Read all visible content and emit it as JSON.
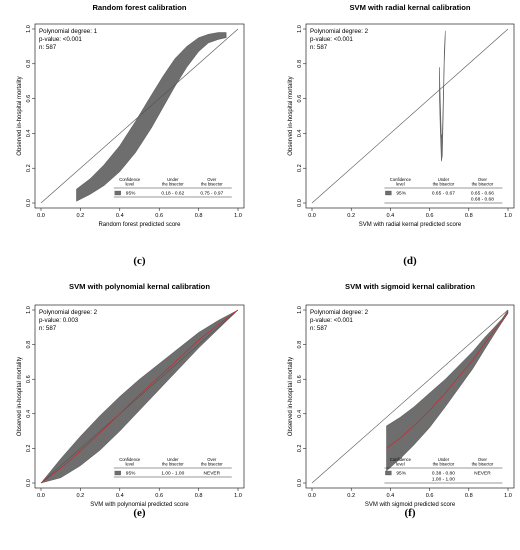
{
  "chart_data": [
    {
      "type": "area",
      "title": "Random forest calibration",
      "xlabel": "Random forest predicted score",
      "ylabel": "Observed in-hospital mortality",
      "xlim": [
        0,
        1
      ],
      "ylim": [
        0,
        1
      ],
      "ticks": [
        "0.0",
        "0.2",
        "0.4",
        "0.6",
        "0.8",
        "1.0"
      ],
      "grid": false,
      "info": [
        "Polynomial degree: 1",
        "p-value: <0.001",
        "n: 587"
      ],
      "legend": {
        "headers": [
          "Confidence level",
          "Under the bisector",
          "Over the bisector"
        ],
        "level": "95%",
        "under": [
          "0.18 - 0.62"
        ],
        "over": [
          "0.75 - 0.97"
        ]
      },
      "caption": "(c)",
      "band": {
        "x": [
          0.18,
          0.25,
          0.32,
          0.4,
          0.48,
          0.56,
          0.62,
          0.68,
          0.74,
          0.8,
          0.85,
          0.9,
          0.94
        ],
        "lower": [
          0.01,
          0.05,
          0.1,
          0.18,
          0.29,
          0.43,
          0.55,
          0.67,
          0.78,
          0.87,
          0.92,
          0.94,
          0.95
        ],
        "upper": [
          0.08,
          0.14,
          0.22,
          0.33,
          0.47,
          0.62,
          0.73,
          0.83,
          0.9,
          0.95,
          0.97,
          0.98,
          0.98
        ]
      },
      "red_line": false
    },
    {
      "type": "area",
      "title": "SVM with radial kernal calibration",
      "xlabel": "SVM with radial kernal predicted score",
      "ylabel": "Observed in-hospital mortality",
      "xlim": [
        0,
        1
      ],
      "ylim": [
        0,
        1
      ],
      "ticks": [
        "0.0",
        "0.2",
        "0.4",
        "0.6",
        "0.8",
        "1.0"
      ],
      "grid": false,
      "info": [
        "Polynomial degree: 2",
        "p-value: <0.001",
        "n: 587"
      ],
      "legend": {
        "headers": [
          "Confidence level",
          "Under the bisector",
          "Over the bisector"
        ],
        "level": "95%",
        "under": [
          "0.65 - 0.67"
        ],
        "over": [
          "0.65 - 0.66",
          "0.68 - 0.68"
        ]
      },
      "caption": "(d)",
      "band": {
        "x": [
          0.65,
          0.655,
          0.66,
          0.665,
          0.67,
          0.675,
          0.68
        ],
        "lower": [
          0.6,
          0.4,
          0.24,
          0.27,
          0.52,
          0.8,
          0.95
        ],
        "upper": [
          0.78,
          0.58,
          0.38,
          0.4,
          0.62,
          0.88,
          0.99
        ]
      },
      "red_line": false
    },
    {
      "type": "area",
      "title": "SVM with polynomial kernal calibration",
      "xlabel": "SVM with polynomial predicted score",
      "ylabel": "Observed in-hospital mortality",
      "xlim": [
        0,
        1
      ],
      "ylim": [
        0,
        1
      ],
      "ticks": [
        "0.0",
        "0.2",
        "0.4",
        "0.6",
        "0.8",
        "1.0"
      ],
      "grid": false,
      "info": [
        "Polynomial degree: 2",
        "p-value: 0.003",
        "n: 587"
      ],
      "legend": {
        "headers": [
          "Confidence level",
          "Under the bisector",
          "Over the bisector"
        ],
        "level": "95%",
        "under": [
          "1.00 - 1.00"
        ],
        "over": [
          "NEVER"
        ]
      },
      "caption": "(e)",
      "band": {
        "x": [
          0.0,
          0.1,
          0.2,
          0.3,
          0.4,
          0.5,
          0.6,
          0.7,
          0.8,
          0.9,
          1.0
        ],
        "lower": [
          0.0,
          0.03,
          0.1,
          0.19,
          0.3,
          0.42,
          0.54,
          0.66,
          0.78,
          0.89,
          1.0
        ],
        "upper": [
          0.0,
          0.14,
          0.27,
          0.39,
          0.5,
          0.6,
          0.69,
          0.78,
          0.87,
          0.94,
          1.0
        ]
      },
      "red_line": true
    },
    {
      "type": "area",
      "title": "SVM with sigmoid kernal calibration",
      "xlabel": "SVM with sigmoid predicted score",
      "ylabel": "Observed in-hospital mortality",
      "xlim": [
        0,
        1
      ],
      "ylim": [
        0,
        1
      ],
      "ticks": [
        "0.0",
        "0.2",
        "0.4",
        "0.6",
        "0.8",
        "1.0"
      ],
      "grid": false,
      "info": [
        "Polynomial degree: 2",
        "p-value: <0.001",
        "n: 587"
      ],
      "legend": {
        "headers": [
          "Confidence level",
          "Under the bisector",
          "Over the bisector"
        ],
        "level": "95%",
        "under": [
          "0.38 - 0.80",
          "1.00 - 1.00"
        ],
        "over": [
          "NEVER"
        ]
      },
      "caption": "(f)",
      "band": {
        "x": [
          0.38,
          0.45,
          0.52,
          0.6,
          0.68,
          0.75,
          0.82,
          0.88,
          0.93,
          0.97,
          1.0
        ],
        "lower": [
          0.07,
          0.14,
          0.22,
          0.32,
          0.44,
          0.55,
          0.66,
          0.77,
          0.86,
          0.93,
          0.98
        ],
        "upper": [
          0.33,
          0.38,
          0.44,
          0.52,
          0.6,
          0.68,
          0.76,
          0.84,
          0.9,
          0.95,
          1.0
        ]
      },
      "red_line": true
    }
  ]
}
